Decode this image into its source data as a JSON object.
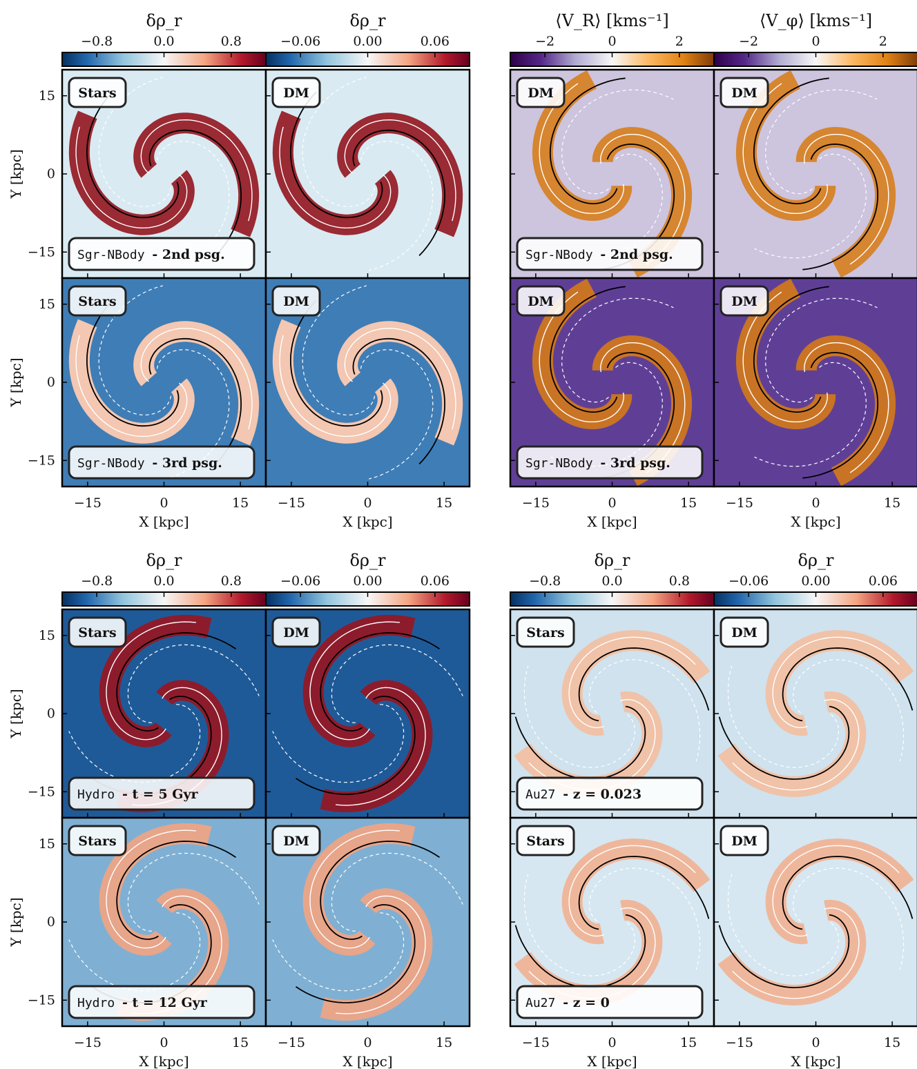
{
  "chart_data": {
    "type": "heatmap",
    "xlabel": "X [kpc]",
    "ylabel": "Y [kpc]",
    "axis_ticks": [
      -15,
      0,
      15
    ],
    "axis_tick_labels": [
      "−15",
      "0",
      "15"
    ],
    "xlim": [
      -20,
      20
    ],
    "ylim": [
      -20,
      20
    ],
    "groups": [
      {
        "colorbars": [
          {
            "title": "δρ_r",
            "ticks": [
              "−0.8",
              "0.0",
              "0.8"
            ],
            "cmap": "RdBu_r"
          },
          {
            "title": "δρ_r",
            "ticks": [
              "−0.06",
              "0.00",
              "0.06"
            ],
            "cmap": "RdBu_r"
          }
        ],
        "rows": [
          {
            "run_mono": "Sgr-NBody",
            "run_bold": "- 2nd psg.",
            "panels": [
              "Stars",
              "DM"
            ]
          },
          {
            "run_mono": "Sgr-NBody",
            "run_bold": "- 3rd psg.",
            "panels": [
              "Stars",
              "DM"
            ]
          }
        ]
      },
      {
        "colorbars": [
          {
            "title": "⟨V_R⟩ [kms⁻¹]",
            "ticks": [
              "−2",
              "0",
              "2"
            ],
            "cmap": "PuOr_r"
          },
          {
            "title": "⟨V_φ⟩ [kms⁻¹]",
            "ticks": [
              "−2",
              "0",
              "2"
            ],
            "cmap": "PuOr_r"
          }
        ],
        "rows": [
          {
            "run_mono": "Sgr-NBody",
            "run_bold": "- 2nd psg.",
            "panels": [
              "DM",
              "DM"
            ]
          },
          {
            "run_mono": "Sgr-NBody",
            "run_bold": "- 3rd psg.",
            "panels": [
              "DM",
              "DM"
            ]
          }
        ]
      },
      {
        "colorbars": [
          {
            "title": "δρ_r",
            "ticks": [
              "−0.8",
              "0.0",
              "0.8"
            ],
            "cmap": "RdBu_r"
          },
          {
            "title": "δρ_r",
            "ticks": [
              "−0.06",
              "0.00",
              "0.06"
            ],
            "cmap": "RdBu_r"
          }
        ],
        "rows": [
          {
            "run_mono": "Hydro",
            "run_bold": "- t = 5 Gyr",
            "panels": [
              "Stars",
              "DM"
            ]
          },
          {
            "run_mono": "Hydro",
            "run_bold": "- t = 12 Gyr",
            "panels": [
              "Stars",
              "DM"
            ]
          }
        ]
      },
      {
        "colorbars": [
          {
            "title": "δρ_r",
            "ticks": [
              "−0.8",
              "0.0",
              "0.8"
            ],
            "cmap": "RdBu_r"
          },
          {
            "title": "δρ_r",
            "ticks": [
              "−0.06",
              "0.00",
              "0.06"
            ],
            "cmap": "RdBu_r"
          }
        ],
        "rows": [
          {
            "run_mono": "Au27",
            "run_bold": "- z = 0.023",
            "panels": [
              "Stars",
              "DM"
            ]
          },
          {
            "run_mono": "Au27",
            "run_bold": "- z = 0",
            "panels": [
              "Stars",
              "DM"
            ]
          }
        ]
      }
    ],
    "panel_appearance": [
      [
        [
          "#9a2a33",
          "#d9eaf2"
        ],
        [
          "#f3c7b1",
          "#3f7db6"
        ]
      ],
      [
        [
          "#d68530",
          "#cdc4de"
        ],
        [
          "#c97424",
          "#5f3f96"
        ]
      ],
      [
        [
          "#8c1c2c",
          "#1f5a98"
        ],
        [
          "#e7a58a",
          "#7fb0d3"
        ]
      ],
      [
        [
          "#f0c2a8",
          "#cfe2ee"
        ],
        [
          "#eeb79c",
          "#d6e7f1"
        ]
      ]
    ]
  }
}
